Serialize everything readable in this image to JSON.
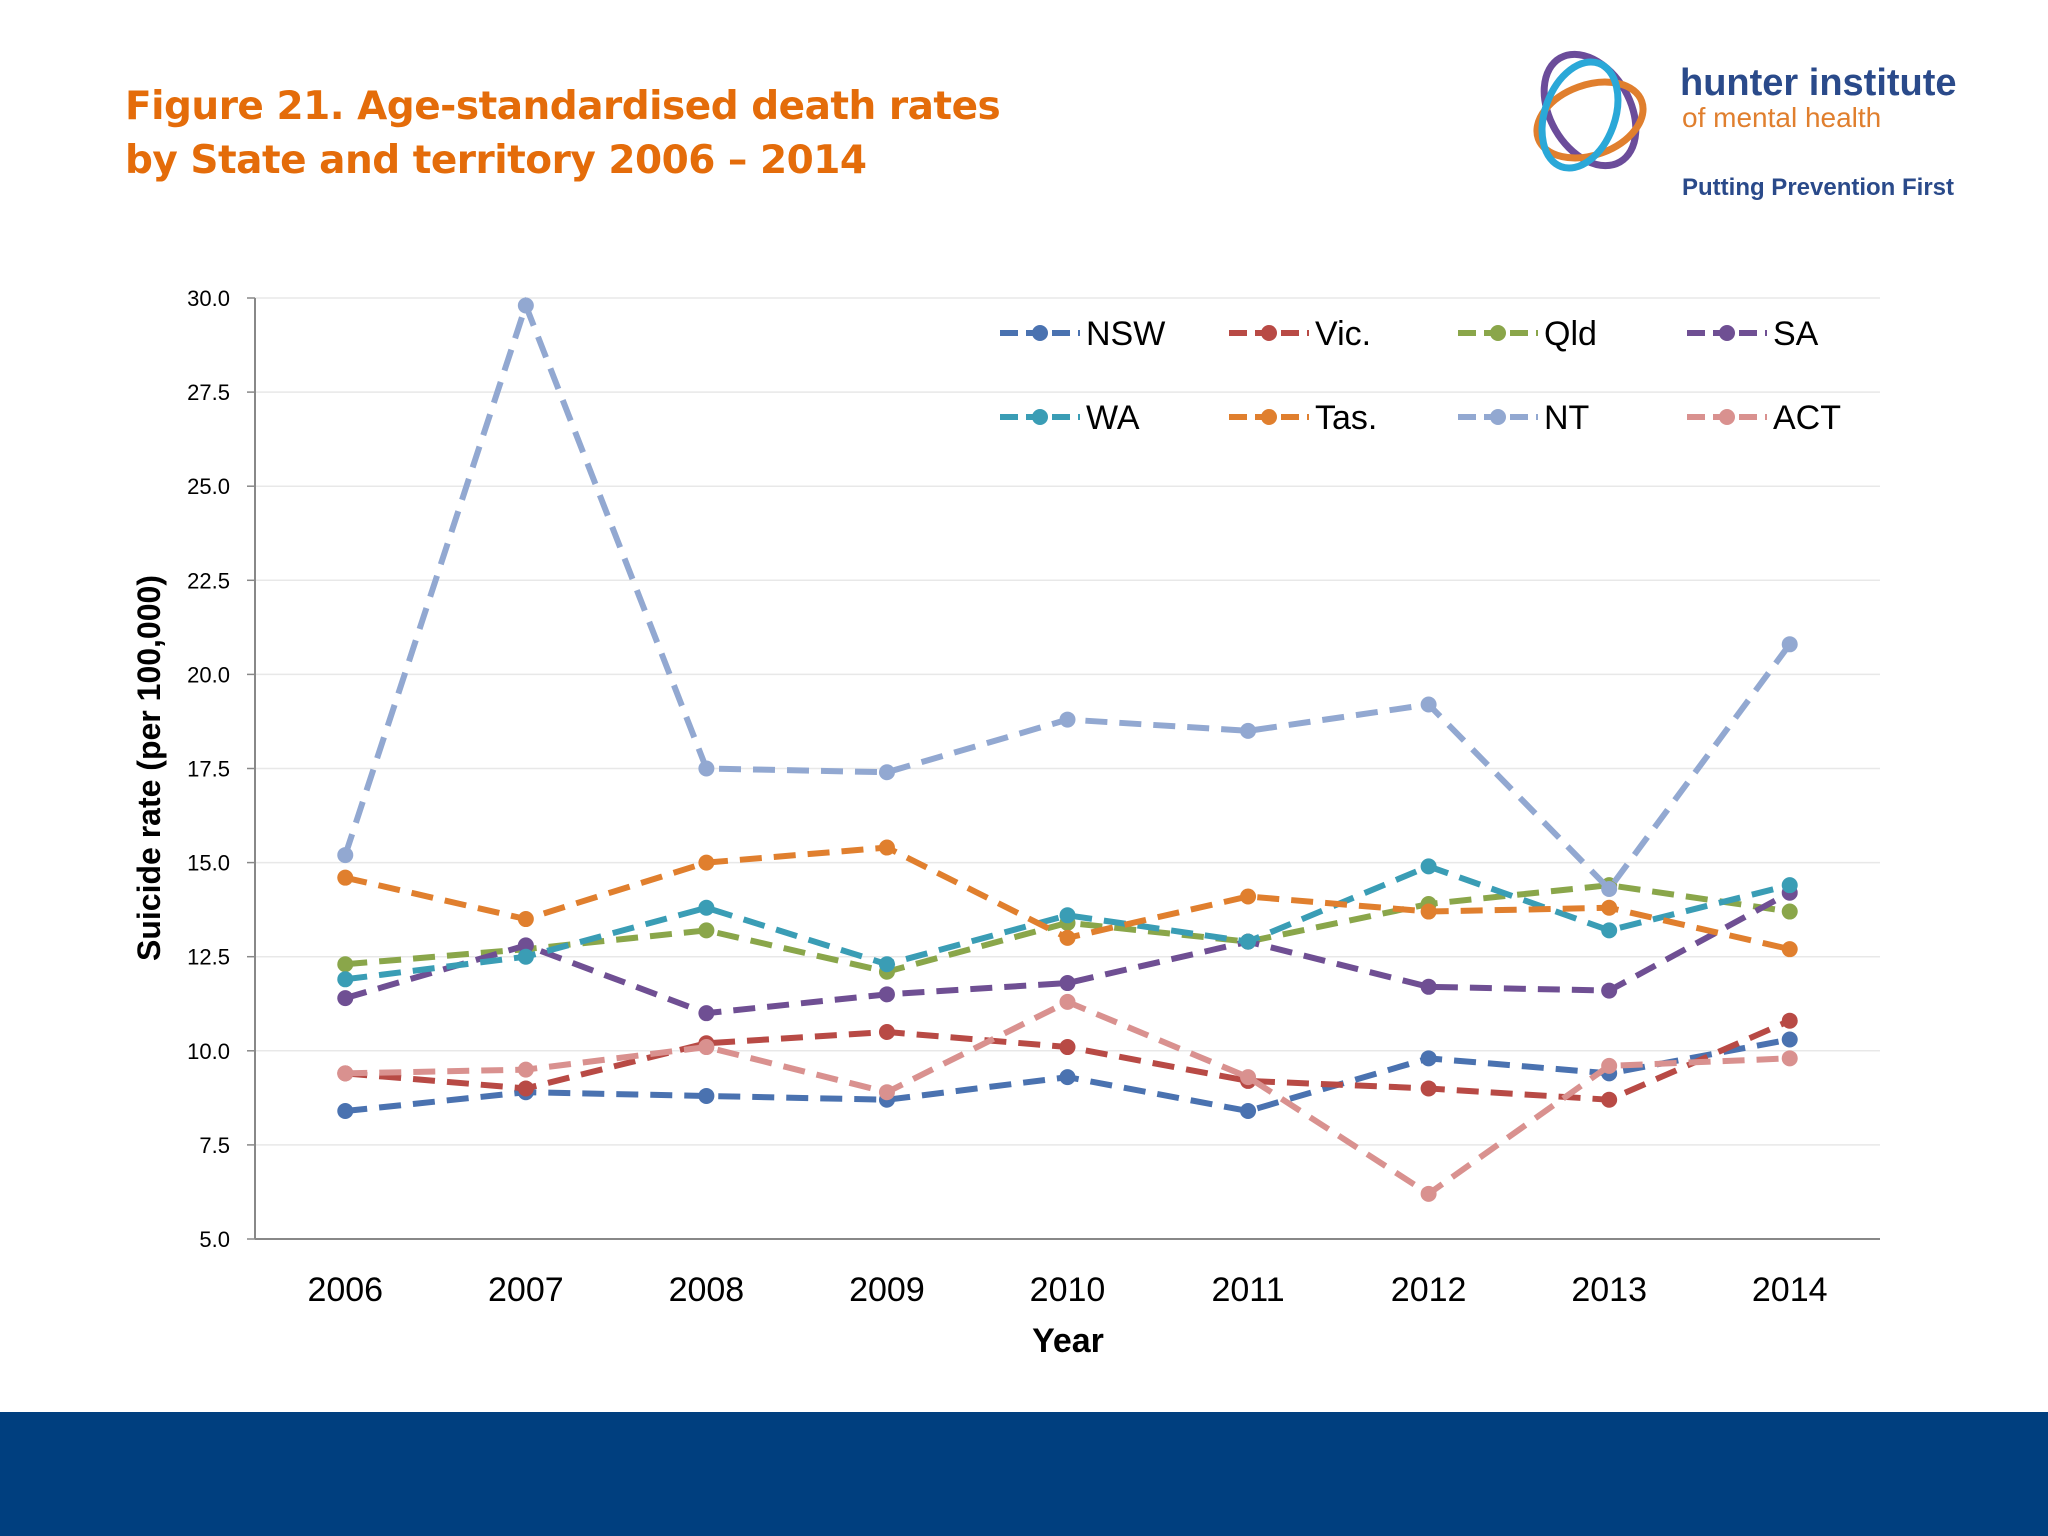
{
  "title_line1": "Figure 21. Age-standardised death rates",
  "title_line2": "by State and territory 2006 – 2014",
  "logo": {
    "name": "hunter institute",
    "sub": "of mental health",
    "tagline": "Putting Prevention First"
  },
  "colors": {
    "title": "#e46c0a",
    "footer": "#003f7f"
  },
  "chart_data": {
    "type": "line",
    "title": "",
    "xlabel": "Year",
    "ylabel": "Suicide rate (per 100,000)",
    "ylim": [
      5.0,
      30.0
    ],
    "yticks": [
      "5.0",
      "7.5",
      "10.0",
      "12.5",
      "15.0",
      "17.5",
      "20.0",
      "22.5",
      "25.0",
      "27.5",
      "30.0"
    ],
    "categories": [
      "2006",
      "2007",
      "2008",
      "2009",
      "2010",
      "2011",
      "2012",
      "2013",
      "2014"
    ],
    "grid": "horizontal",
    "legend": "top-right",
    "line_style": "dashed with markers",
    "series": [
      {
        "name": "NSW",
        "color": "#4a72b0",
        "values": [
          8.4,
          8.9,
          8.8,
          8.7,
          9.3,
          8.4,
          9.8,
          9.4,
          10.3
        ]
      },
      {
        "name": "Vic.",
        "color": "#b84a45",
        "values": [
          9.4,
          9.0,
          10.2,
          10.5,
          10.1,
          9.2,
          9.0,
          8.7,
          10.8
        ]
      },
      {
        "name": "Qld",
        "color": "#8aa64a",
        "values": [
          12.3,
          12.7,
          13.2,
          12.1,
          13.4,
          12.9,
          13.9,
          14.4,
          13.7
        ]
      },
      {
        "name": "SA",
        "color": "#6f4f93",
        "values": [
          11.4,
          12.8,
          11.0,
          11.5,
          11.8,
          12.9,
          11.7,
          11.6,
          14.2
        ]
      },
      {
        "name": "WA",
        "color": "#3a9db5",
        "values": [
          11.9,
          12.5,
          13.8,
          12.3,
          13.6,
          12.9,
          14.9,
          13.2,
          14.4
        ]
      },
      {
        "name": "Tas.",
        "color": "#e07f2e",
        "values": [
          14.6,
          13.5,
          15.0,
          15.4,
          13.0,
          14.1,
          13.7,
          13.8,
          12.7
        ]
      },
      {
        "name": "NT",
        "color": "#92a8d1",
        "values": [
          15.2,
          29.8,
          17.5,
          17.4,
          18.8,
          18.5,
          19.2,
          14.3,
          20.8
        ]
      },
      {
        "name": "ACT",
        "color": "#d9918f",
        "values": [
          9.4,
          9.5,
          10.1,
          8.9,
          11.3,
          9.3,
          6.2,
          9.6,
          9.8
        ]
      }
    ]
  }
}
